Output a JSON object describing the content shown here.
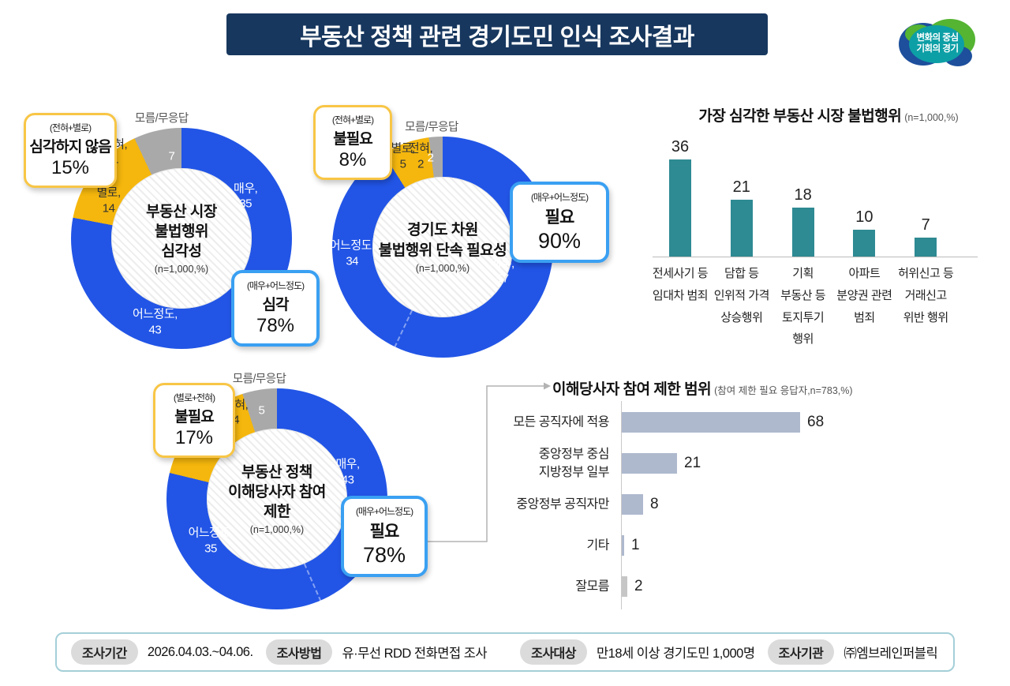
{
  "header": {
    "title": "부동산 정책 관련 경기도민 인식 조사결과",
    "logo_line1": "변화의 중심",
    "logo_line2": "기회의 경기"
  },
  "colors": {
    "blue": "#2255E6",
    "yellow": "#F5B70D",
    "gray": "#A9A9A9",
    "navy": "#17375E",
    "teal_bar": "#2E8A93",
    "hbar": "#AEB9CE",
    "hbar_gray": "#C6C6C6",
    "callout_yellow_border": "#F8C646",
    "callout_blue_border": "#3AA0F2"
  },
  "chart_data": [
    {
      "type": "pie",
      "variant": "donut",
      "title_lines": [
        "부동산 시장",
        "불법행위",
        "심각성"
      ],
      "n_label": "(n=1,000,%)",
      "labels": [
        "매우",
        "어느정도",
        "별로",
        "전혀",
        "모름/무응답"
      ],
      "values": [
        35,
        43,
        14,
        1,
        7
      ],
      "colors": [
        "blue",
        "blue",
        "yellow",
        "yellow",
        "gray"
      ],
      "separator_angle": 126,
      "segment_labels": [
        {
          "lines": [
            "매우,",
            "35"
          ],
          "pos": [
            79,
            31
          ],
          "tone": "light"
        },
        {
          "lines": [
            "어느정도,",
            "43"
          ],
          "pos": [
            38,
            88
          ],
          "tone": "light"
        },
        {
          "lines": [
            "별로,",
            "14"
          ],
          "pos": [
            17,
            33
          ],
          "tone": "dark"
        },
        {
          "lines": [
            "전혀,",
            "1"
          ],
          "pos": [
            20,
            11
          ],
          "tone": "dark"
        },
        {
          "lines": [
            "7"
          ],
          "pos": [
            45.5,
            13
          ],
          "tone": "light"
        }
      ],
      "outside_label": {
        "text": "모름/무응답",
        "pos": [
          41,
          -4
        ]
      },
      "callout_low": {
        "sub": "(전혀+별로)",
        "label": "심각하지 않음",
        "pct": "15%"
      },
      "callout_high": {
        "sub": "(매우+어느정도)",
        "label": "심각",
        "pct": "78%"
      }
    },
    {
      "type": "pie",
      "variant": "donut",
      "title_lines": [
        "경기도 차원",
        "불법행위 단속 필요성"
      ],
      "n_label": "(n=1,000,%)",
      "labels": [
        "매우",
        "어느정도",
        "별로",
        "전혀",
        "모름/무응답"
      ],
      "values": [
        57,
        34,
        5,
        2,
        2
      ],
      "colors": [
        "blue",
        "blue",
        "yellow",
        "yellow",
        "gray"
      ],
      "separator_angle": 205.2,
      "segment_labels": [
        {
          "lines": [
            "매우,",
            "57"
          ],
          "pos": [
            77,
            61
          ],
          "tone": "light"
        },
        {
          "lines": [
            "어느정도,",
            "34"
          ],
          "pos": [
            9,
            53
          ],
          "tone": "light"
        },
        {
          "lines": [
            "별로,",
            "5"
          ],
          "pos": [
            32,
            9
          ],
          "tone": "dark"
        },
        {
          "lines": [
            "전혀,",
            "2"
          ],
          "pos": [
            40,
            9
          ],
          "tone": "dark"
        },
        {
          "lines": [
            "2"
          ],
          "pos": [
            44.5,
            9.5
          ],
          "tone": "light"
        }
      ],
      "outside_label": {
        "text": "모름/무응답",
        "pos": [
          45,
          -4
        ]
      },
      "callout_low": {
        "sub": "(전혀+별로)",
        "label": "불필요",
        "pct": "8%"
      },
      "callout_high": {
        "sub": "(매우+어느정도)",
        "label": "필요",
        "pct": "90%"
      }
    },
    {
      "type": "pie",
      "variant": "donut",
      "title_lines": [
        "부동산 정책",
        "이해당사자 참여",
        "제한"
      ],
      "n_label": "(n=1,000,%)",
      "labels": [
        "매우",
        "어느정도",
        "별로",
        "전혀",
        "모름/무응답"
      ],
      "values": [
        43,
        35,
        12,
        4,
        5
      ],
      "colors": [
        "blue",
        "blue",
        "yellow",
        "yellow",
        "gray"
      ],
      "separator_angle": 156.4,
      "segment_labels": [
        {
          "lines": [
            "매우,",
            "43"
          ],
          "pos": [
            82,
            38
          ],
          "tone": "light"
        },
        {
          "lines": [
            "어느정도,",
            "35"
          ],
          "pos": [
            20,
            69
          ],
          "tone": "light"
        },
        {
          "lines": [
            "별로, 12"
          ],
          "pos": [
            16,
            28
          ],
          "tone": "dark"
        },
        {
          "lines": [
            "전혀,",
            "4"
          ],
          "pos": [
            31.5,
            11
          ],
          "tone": "dark"
        },
        {
          "lines": [
            "5"
          ],
          "pos": [
            43,
            10
          ],
          "tone": "light"
        }
      ],
      "outside_label": {
        "text": "모름/무응답",
        "pos": [
          42,
          -4
        ]
      },
      "callout_low": {
        "sub": "(별로+전혀)",
        "label": "불필요",
        "pct": "17%"
      },
      "callout_high": {
        "sub": "(매우+어느정도)",
        "label": "필요",
        "pct": "78%"
      }
    },
    {
      "type": "bar",
      "title": "가장 심각한 부동산 시장 불법행위",
      "subtitle": "(n=1,000,%)",
      "categories": [
        [
          "전세사기 등",
          "임대차 범죄"
        ],
        [
          "담합 등",
          "인위적 가격",
          "상승행위"
        ],
        [
          "기획",
          "부동산 등",
          "토지투기",
          "행위"
        ],
        [
          "아파트",
          "분양권 관련",
          "범죄"
        ],
        [
          "허위신고 등",
          "거래신고",
          "위반 행위"
        ]
      ],
      "values": [
        36,
        21,
        18,
        10,
        7
      ],
      "bar_color": "#2E8A93",
      "ylim": [
        0,
        40
      ]
    },
    {
      "type": "bar-horizontal",
      "title": "이해당사자 참여 제한 범위",
      "subtitle": "(참여 제한 필요 응답자,n=783,%)",
      "categories": [
        [
          "모든 공직자에 적용"
        ],
        [
          "중앙정부 중심",
          "지방정부 일부"
        ],
        [
          "중앙정부 공직자만"
        ],
        [
          "기타"
        ],
        [
          "잘모름"
        ]
      ],
      "values": [
        68,
        21,
        8,
        1,
        2
      ],
      "bar_colors": [
        "#AEB9CE",
        "#AEB9CE",
        "#AEB9CE",
        "#AEB9CE",
        "#C6C6C6"
      ],
      "xlim": [
        0,
        75
      ]
    }
  ],
  "footer": {
    "items": [
      {
        "badge": "조사기간",
        "text": "2026.04.03.~04.06."
      },
      {
        "badge": "조사방법",
        "text": "유·무선 RDD 전화면접 조사"
      },
      {
        "badge": "조사대상",
        "text": "만18세 이상 경기도민 1,000명"
      },
      {
        "badge": "조사기관",
        "text": "㈜엠브레인퍼블릭"
      }
    ]
  }
}
